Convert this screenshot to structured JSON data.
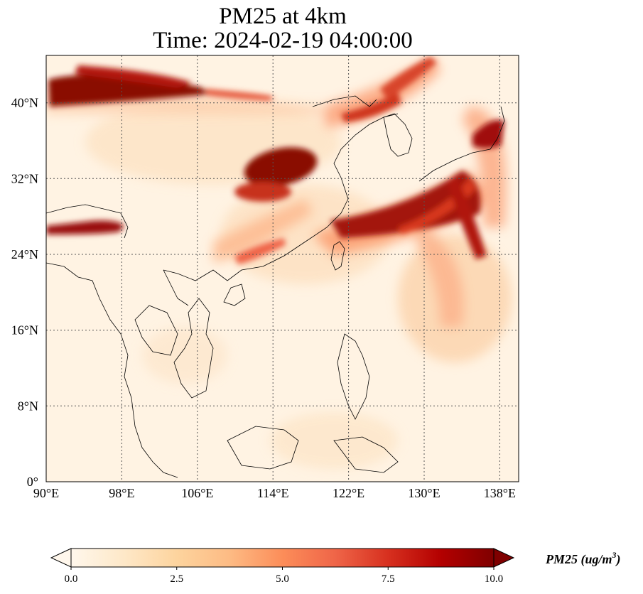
{
  "title": {
    "line1": "PM25 at 4km",
    "line2": "Time: 2024-02-19 04:00:00"
  },
  "map": {
    "lon_range": [
      90,
      140
    ],
    "lat_range": [
      0,
      45
    ],
    "lon_ticks": [
      "90°E",
      "98°E",
      "106°E",
      "114°E",
      "122°E",
      "130°E",
      "138°E"
    ],
    "lat_ticks": [
      "0°",
      "8°N",
      "16°N",
      "24°N",
      "32°N",
      "40°N"
    ],
    "gridlines": true,
    "field": "PM25",
    "level": "4km"
  },
  "colorbar": {
    "label_main": "PM25 (ug/m",
    "label_sup": "3",
    "label_close": ")",
    "ticks": [
      "0.0",
      "2.5",
      "5.0",
      "7.5",
      "10.0"
    ],
    "range": [
      0,
      10
    ],
    "extend": "both",
    "colormap": "OrRd",
    "colors": [
      "#fff7ec",
      "#fee8c8",
      "#fdd49e",
      "#fdbb84",
      "#fc8d59",
      "#ef6548",
      "#d7301f",
      "#b30000",
      "#7f0000"
    ]
  }
}
